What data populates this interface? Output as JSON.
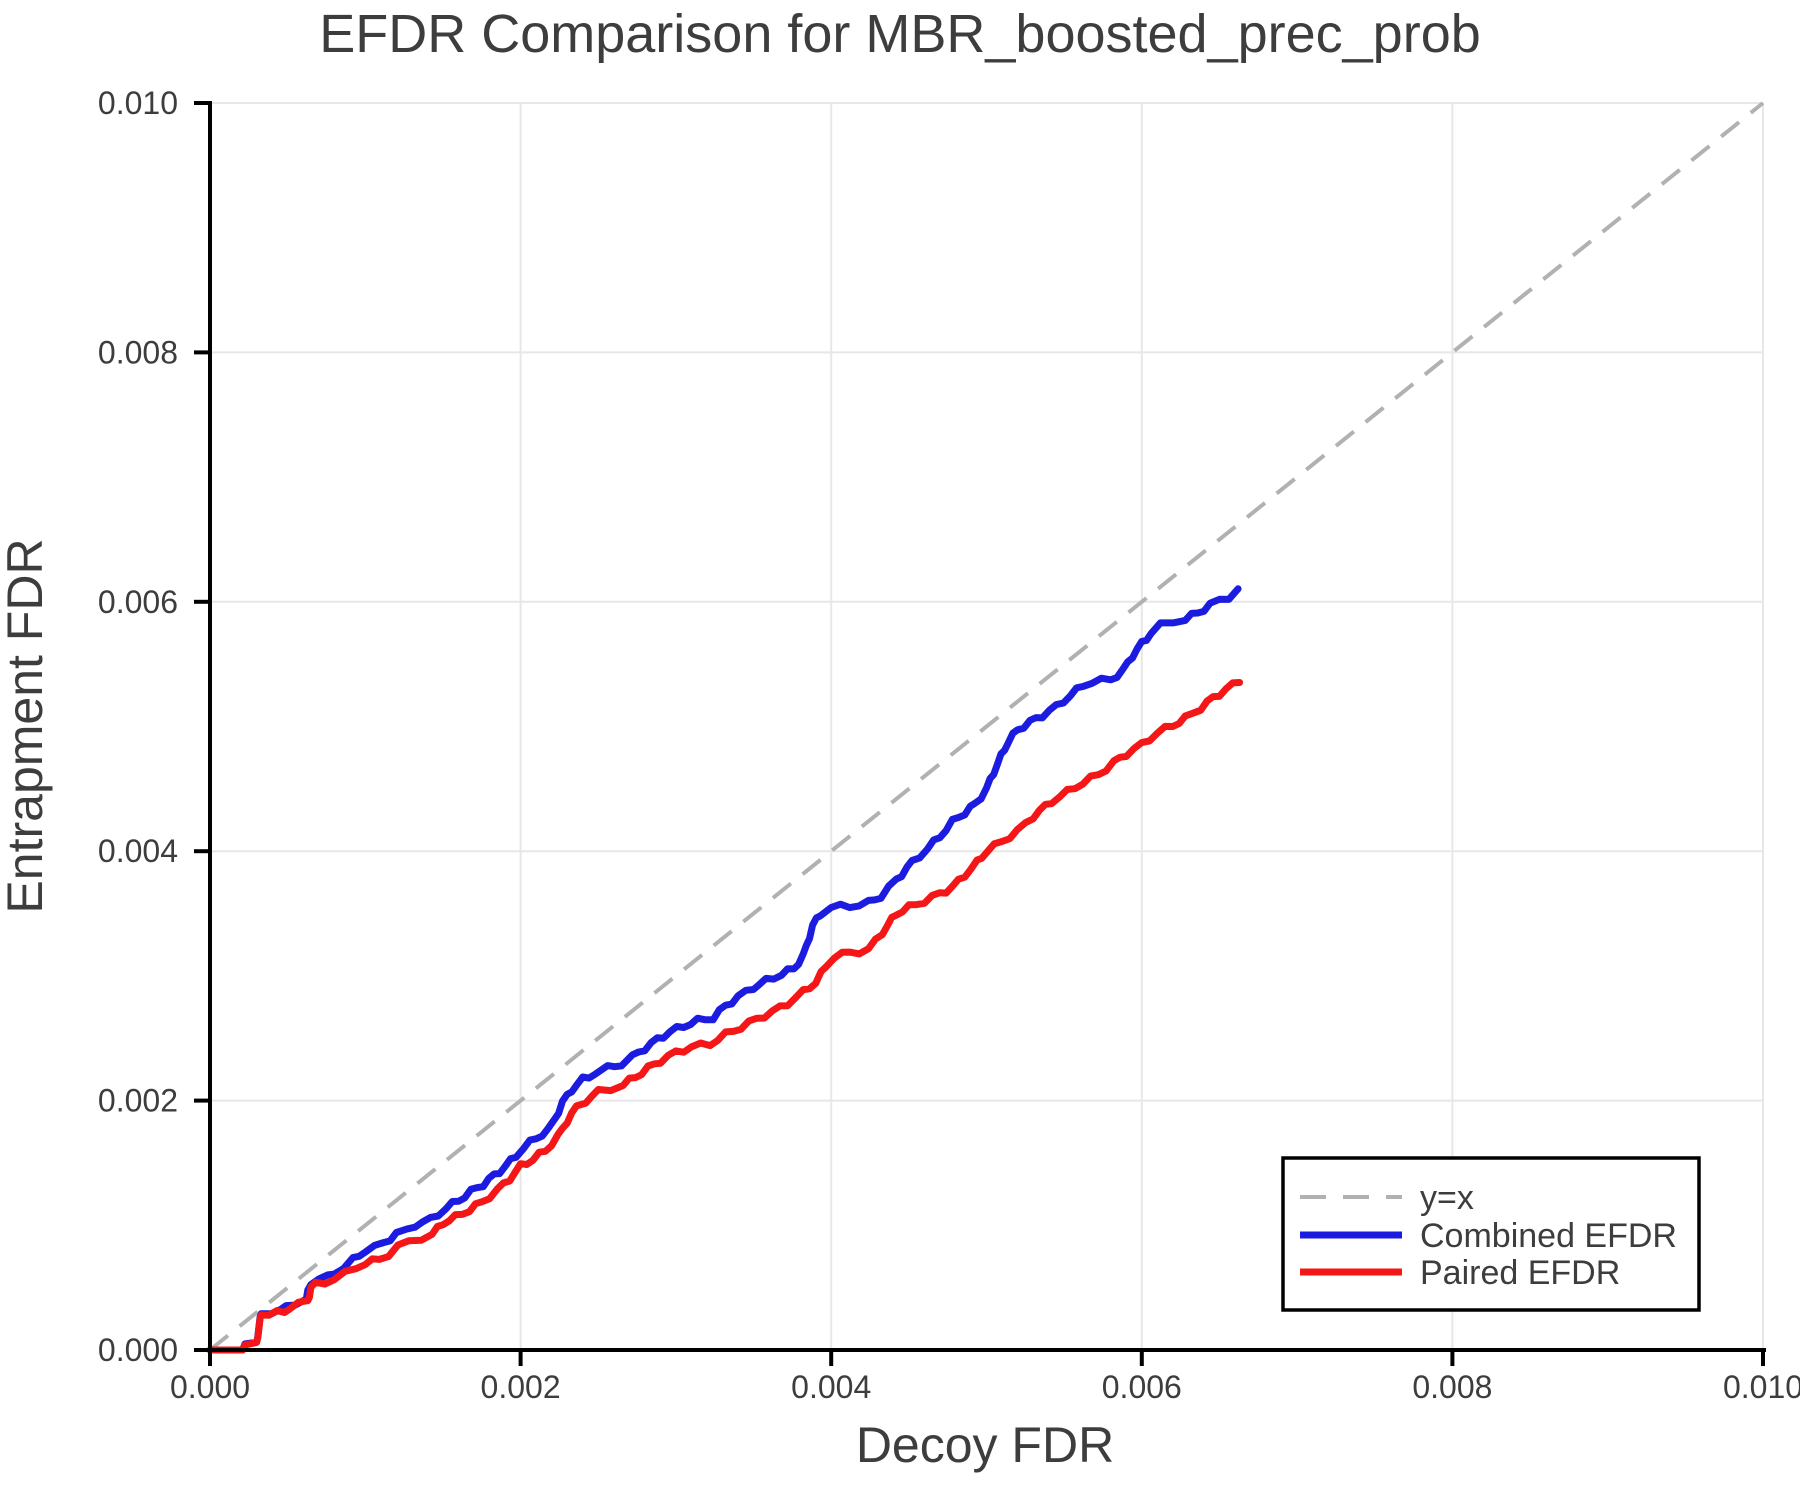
{
  "title": "EFDR Comparison for MBR_boosted_prec_prob",
  "axes": {
    "xlabel": "Decoy FDR",
    "ylabel": "Entrapment FDR",
    "x_tick_labels": [
      "0.000",
      "0.002",
      "0.004",
      "0.006",
      "0.008",
      "0.010"
    ],
    "x_tick_values": [
      0,
      0.002,
      0.004,
      0.006,
      0.008,
      0.01
    ],
    "y_tick_labels": [
      "0.000",
      "0.002",
      "0.004",
      "0.006",
      "0.008",
      "0.010"
    ],
    "y_tick_values": [
      0,
      0.002,
      0.004,
      0.006,
      0.008,
      0.01
    ],
    "xlim": [
      0,
      0.01
    ],
    "ylim": [
      0,
      0.01
    ]
  },
  "colors": {
    "combined": "#1c1ce0",
    "paired": "#f51717",
    "identity": "#b1b1b1",
    "grid": "#e7e7e7",
    "spine": "#000000",
    "text": "#3d3d3d"
  },
  "legend": {
    "entries": [
      {
        "label": "y=x",
        "color": "#b1b1b1",
        "dashed": true
      },
      {
        "label": "Combined EFDR",
        "color": "#1c1ce0",
        "dashed": false
      },
      {
        "label": "Paired EFDR",
        "color": "#f51717",
        "dashed": false
      }
    ]
  },
  "chart_data": {
    "type": "line",
    "title": "EFDR Comparison for MBR_boosted_prec_prob",
    "xlabel": "Decoy FDR",
    "ylabel": "Entrapment FDR",
    "xlim": [
      0,
      0.01
    ],
    "ylim": [
      0,
      0.01
    ],
    "grid": true,
    "legend_position": "lower right",
    "units_note": "point coordinates are in units of 1e-3 FDR",
    "series": [
      {
        "name": "y=x",
        "style": "dashed",
        "color": "#b1b1b1",
        "points": [
          [
            0,
            0
          ],
          [
            10,
            10
          ]
        ]
      },
      {
        "name": "Combined EFDR",
        "style": "solid",
        "color": "#1c1ce0",
        "points": [
          [
            0,
            0
          ],
          [
            0.21,
            0
          ],
          [
            0.225,
            0.045
          ],
          [
            0.3,
            0.05
          ],
          [
            0.315,
            0.19
          ],
          [
            0.33,
            0.3
          ],
          [
            0.46,
            0.31
          ],
          [
            0.49,
            0.355
          ],
          [
            0.55,
            0.38
          ],
          [
            0.62,
            0.395
          ],
          [
            0.63,
            0.47
          ],
          [
            0.65,
            0.545
          ],
          [
            0.7,
            0.565
          ],
          [
            0.76,
            0.585
          ],
          [
            0.8,
            0.625
          ],
          [
            0.86,
            0.66
          ],
          [
            0.92,
            0.72
          ],
          [
            1.0,
            0.8
          ],
          [
            1.06,
            0.82
          ],
          [
            1.12,
            0.86
          ],
          [
            1.2,
            0.93
          ],
          [
            1.27,
            0.96
          ],
          [
            1.32,
            1.005
          ],
          [
            1.42,
            1.045
          ],
          [
            1.47,
            1.09
          ],
          [
            1.52,
            1.14
          ],
          [
            1.6,
            1.2
          ],
          [
            1.68,
            1.27
          ],
          [
            1.76,
            1.33
          ],
          [
            1.83,
            1.4
          ],
          [
            1.9,
            1.47
          ],
          [
            1.97,
            1.56
          ],
          [
            2.02,
            1.625
          ],
          [
            2.1,
            1.7
          ],
          [
            2.18,
            1.765
          ],
          [
            2.22,
            1.85
          ],
          [
            2.27,
            1.985
          ],
          [
            2.33,
            2.09
          ],
          [
            2.4,
            2.17
          ],
          [
            2.48,
            2.22
          ],
          [
            2.56,
            2.26
          ],
          [
            2.65,
            2.295
          ],
          [
            2.72,
            2.35
          ],
          [
            2.8,
            2.42
          ],
          [
            2.88,
            2.49
          ],
          [
            2.96,
            2.55
          ],
          [
            3.05,
            2.6
          ],
          [
            3.14,
            2.64
          ],
          [
            3.24,
            2.665
          ],
          [
            3.32,
            2.76
          ],
          [
            3.4,
            2.83
          ],
          [
            3.5,
            2.91
          ],
          [
            3.58,
            2.96
          ],
          [
            3.68,
            3.015
          ],
          [
            3.76,
            3.06
          ],
          [
            3.82,
            3.16
          ],
          [
            3.88,
            3.4
          ],
          [
            3.93,
            3.5
          ],
          [
            4.0,
            3.55
          ],
          [
            4.12,
            3.56
          ],
          [
            4.24,
            3.585
          ],
          [
            4.32,
            3.64
          ],
          [
            4.42,
            3.77
          ],
          [
            4.52,
            3.91
          ],
          [
            4.62,
            4.02
          ],
          [
            4.7,
            4.12
          ],
          [
            4.78,
            4.235
          ],
          [
            4.86,
            4.31
          ],
          [
            4.93,
            4.38
          ],
          [
            5.0,
            4.5
          ],
          [
            5.07,
            4.7
          ],
          [
            5.14,
            4.88
          ],
          [
            5.2,
            4.975
          ],
          [
            5.28,
            5.035
          ],
          [
            5.36,
            5.09
          ],
          [
            5.45,
            5.16
          ],
          [
            5.54,
            5.25
          ],
          [
            5.62,
            5.33
          ],
          [
            5.68,
            5.36
          ],
          [
            5.8,
            5.375
          ],
          [
            5.88,
            5.45
          ],
          [
            5.94,
            5.57
          ],
          [
            6.0,
            5.665
          ],
          [
            6.06,
            5.75
          ],
          [
            6.12,
            5.81
          ],
          [
            6.2,
            5.84
          ],
          [
            6.28,
            5.865
          ],
          [
            6.36,
            5.91
          ],
          [
            6.44,
            5.975
          ],
          [
            6.5,
            6.01
          ],
          [
            6.56,
            6.04
          ],
          [
            6.62,
            6.1
          ]
        ]
      },
      {
        "name": "Paired EFDR",
        "style": "solid",
        "color": "#f51717",
        "points": [
          [
            0,
            0
          ],
          [
            0.21,
            0
          ],
          [
            0.225,
            0.04
          ],
          [
            0.3,
            0.048
          ],
          [
            0.315,
            0.175
          ],
          [
            0.33,
            0.29
          ],
          [
            0.48,
            0.3
          ],
          [
            0.51,
            0.345
          ],
          [
            0.57,
            0.37
          ],
          [
            0.63,
            0.385
          ],
          [
            0.65,
            0.5
          ],
          [
            0.68,
            0.525
          ],
          [
            0.74,
            0.545
          ],
          [
            0.8,
            0.57
          ],
          [
            0.87,
            0.61
          ],
          [
            0.94,
            0.66
          ],
          [
            1.0,
            0.7
          ],
          [
            1.09,
            0.725
          ],
          [
            1.15,
            0.77
          ],
          [
            1.21,
            0.83
          ],
          [
            1.28,
            0.865
          ],
          [
            1.36,
            0.9
          ],
          [
            1.43,
            0.925
          ],
          [
            1.5,
            1.02
          ],
          [
            1.58,
            1.065
          ],
          [
            1.67,
            1.125
          ],
          [
            1.75,
            1.185
          ],
          [
            1.85,
            1.28
          ],
          [
            1.93,
            1.375
          ],
          [
            2.0,
            1.475
          ],
          [
            2.08,
            1.53
          ],
          [
            2.16,
            1.6
          ],
          [
            2.24,
            1.71
          ],
          [
            2.3,
            1.84
          ],
          [
            2.36,
            1.945
          ],
          [
            2.42,
            2.0
          ],
          [
            2.5,
            2.07
          ],
          [
            2.58,
            2.095
          ],
          [
            2.66,
            2.13
          ],
          [
            2.74,
            2.19
          ],
          [
            2.82,
            2.26
          ],
          [
            2.9,
            2.32
          ],
          [
            3.0,
            2.385
          ],
          [
            3.1,
            2.43
          ],
          [
            3.22,
            2.455
          ],
          [
            3.32,
            2.53
          ],
          [
            3.42,
            2.59
          ],
          [
            3.52,
            2.655
          ],
          [
            3.62,
            2.71
          ],
          [
            3.72,
            2.78
          ],
          [
            3.82,
            2.87
          ],
          [
            3.9,
            2.95
          ],
          [
            3.97,
            3.08
          ],
          [
            4.02,
            3.16
          ],
          [
            4.12,
            3.185
          ],
          [
            4.24,
            3.21
          ],
          [
            4.33,
            3.35
          ],
          [
            4.42,
            3.5
          ],
          [
            4.5,
            3.55
          ],
          [
            4.6,
            3.6
          ],
          [
            4.7,
            3.66
          ],
          [
            4.78,
            3.71
          ],
          [
            4.86,
            3.81
          ],
          [
            4.94,
            3.91
          ],
          [
            5.0,
            4.0
          ],
          [
            5.1,
            4.08
          ],
          [
            5.2,
            4.16
          ],
          [
            5.3,
            4.28
          ],
          [
            5.42,
            4.4
          ],
          [
            5.52,
            4.475
          ],
          [
            5.62,
            4.55
          ],
          [
            5.72,
            4.615
          ],
          [
            5.82,
            4.71
          ],
          [
            5.9,
            4.78
          ],
          [
            6.0,
            4.855
          ],
          [
            6.1,
            4.95
          ],
          [
            6.2,
            5.01
          ],
          [
            6.28,
            5.065
          ],
          [
            6.38,
            5.15
          ],
          [
            6.46,
            5.23
          ],
          [
            6.54,
            5.295
          ],
          [
            6.63,
            5.37
          ]
        ]
      }
    ]
  }
}
